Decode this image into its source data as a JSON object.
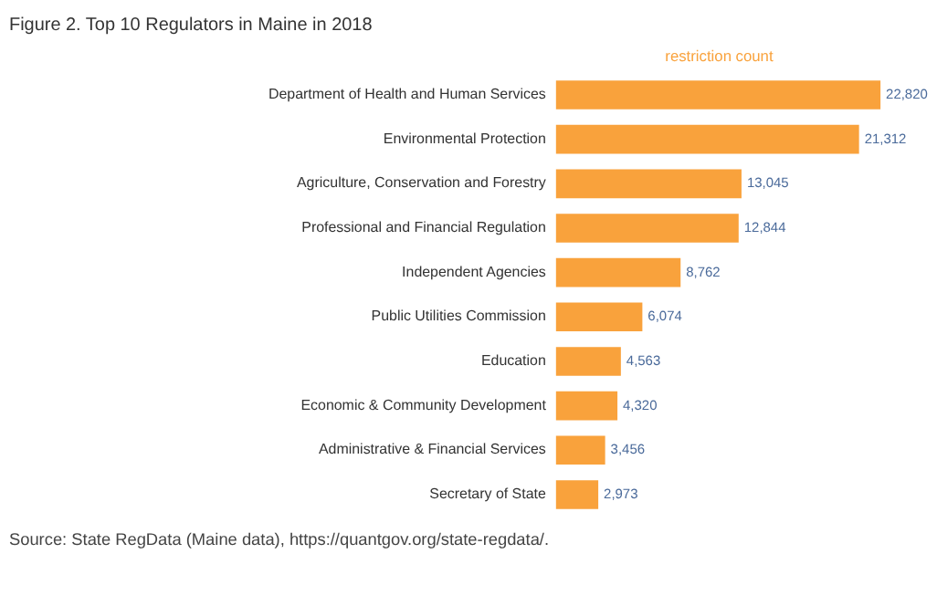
{
  "chart_data": {
    "type": "bar",
    "orientation": "horizontal",
    "title": "Figure 2. Top 10 Regulators in Maine in 2018",
    "xlabel": "restriction count",
    "categories": [
      "Department of Health and Human Services",
      "Environmental Protection",
      "Agriculture, Conservation and Forestry",
      "Professional and Financial Regulation",
      "Independent Agencies",
      "Public Utilities Commission",
      "Education",
      "Economic & Community Development",
      "Administrative & Financial Services",
      "Secretary of State"
    ],
    "values": [
      22820,
      21312,
      13045,
      12844,
      8762,
      6074,
      4563,
      4320,
      3456,
      2973
    ],
    "value_labels": [
      "22,820",
      "21,312",
      "13,045",
      "12,844",
      "8,762",
      "6,074",
      "4,563",
      "4,320",
      "3,456",
      "2,973"
    ],
    "color": "#f9a23c",
    "grid": false,
    "annotations": [
      "Source: State RegData (Maine data), https://quantgov.org/state-regdata/."
    ]
  }
}
